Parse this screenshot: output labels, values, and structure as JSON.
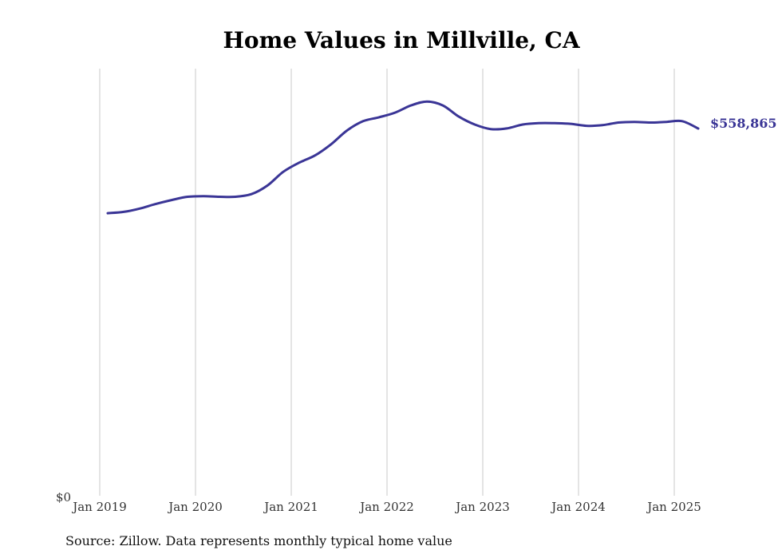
{
  "chart_data": {
    "type": "line",
    "title": "Home Values in Millville, CA",
    "xlabel": "",
    "ylabel": "",
    "x_ticks": [
      "Jan 2019",
      "Jan 2020",
      "Jan 2021",
      "Jan 2022",
      "Jan 2023",
      "Jan 2024",
      "Jan 2025"
    ],
    "y_tick_label": "$0",
    "ylim": [
      0,
      650000
    ],
    "grid": "vertical",
    "series": [
      {
        "color": "#3a3596",
        "end_label": "$558,865",
        "points": [
          {
            "x": "2019-02",
            "y": 430000
          },
          {
            "x": "2019-04",
            "y": 432000
          },
          {
            "x": "2019-06",
            "y": 437000
          },
          {
            "x": "2019-08",
            "y": 444000
          },
          {
            "x": "2019-10",
            "y": 450000
          },
          {
            "x": "2019-12",
            "y": 455000
          },
          {
            "x": "2020-02",
            "y": 456000
          },
          {
            "x": "2020-04",
            "y": 455000
          },
          {
            "x": "2020-06",
            "y": 455000
          },
          {
            "x": "2020-08",
            "y": 459000
          },
          {
            "x": "2020-10",
            "y": 472000
          },
          {
            "x": "2020-12",
            "y": 493000
          },
          {
            "x": "2021-02",
            "y": 507000
          },
          {
            "x": "2021-04",
            "y": 518000
          },
          {
            "x": "2021-06",
            "y": 535000
          },
          {
            "x": "2021-08",
            "y": 556000
          },
          {
            "x": "2021-10",
            "y": 570000
          },
          {
            "x": "2021-12",
            "y": 576000
          },
          {
            "x": "2022-02",
            "y": 583000
          },
          {
            "x": "2022-04",
            "y": 594000
          },
          {
            "x": "2022-06",
            "y": 600000
          },
          {
            "x": "2022-08",
            "y": 594000
          },
          {
            "x": "2022-10",
            "y": 577000
          },
          {
            "x": "2022-12",
            "y": 565000
          },
          {
            "x": "2023-02",
            "y": 558000
          },
          {
            "x": "2023-04",
            "y": 559000
          },
          {
            "x": "2023-06",
            "y": 565000
          },
          {
            "x": "2023-08",
            "y": 567000
          },
          {
            "x": "2023-10",
            "y": 567000
          },
          {
            "x": "2023-12",
            "y": 566000
          },
          {
            "x": "2024-02",
            "y": 563000
          },
          {
            "x": "2024-04",
            "y": 564000
          },
          {
            "x": "2024-06",
            "y": 568000
          },
          {
            "x": "2024-08",
            "y": 569000
          },
          {
            "x": "2024-10",
            "y": 568000
          },
          {
            "x": "2024-12",
            "y": 569000
          },
          {
            "x": "2025-02",
            "y": 570000
          },
          {
            "x": "2025-04",
            "y": 558865
          }
        ]
      }
    ]
  },
  "source_note": "Source: Zillow. Data represents monthly typical home value"
}
